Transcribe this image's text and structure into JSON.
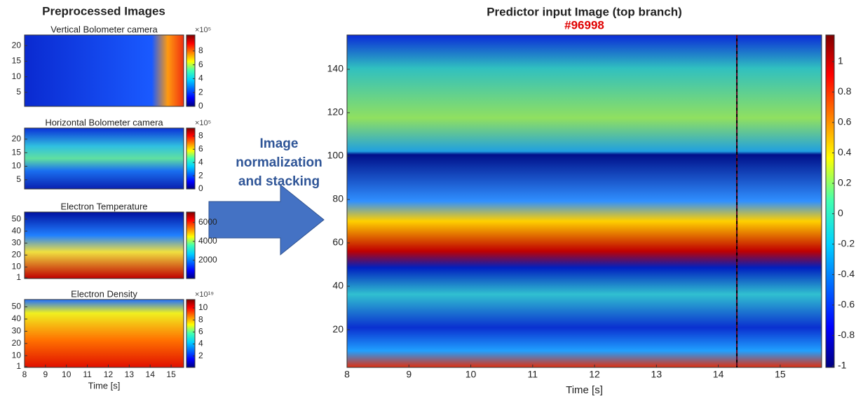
{
  "heading": "Preprocessed Images",
  "arrow_label": [
    "Image",
    "normalization",
    "and stacking"
  ],
  "chart_data": [
    {
      "type": "heatmap",
      "title": "Vertical Bolometer camera",
      "xlim": [
        8,
        15.6
      ],
      "ylim": [
        0.5,
        23.4
      ],
      "yticks": [
        5,
        10,
        15,
        20
      ],
      "clim": [
        0,
        10.3
      ],
      "cticks": [
        0,
        2,
        4,
        6,
        8
      ],
      "colorbar_scale": "×10⁵"
    },
    {
      "type": "heatmap",
      "title": "Horizontal Bolometer camera",
      "xlim": [
        8,
        15.6
      ],
      "ylim": [
        1.6,
        24.1
      ],
      "yticks": [
        5,
        10,
        15,
        20
      ],
      "clim": [
        0,
        9.2
      ],
      "cticks": [
        0,
        2,
        4,
        6,
        8
      ],
      "colorbar_scale": "×10⁵"
    },
    {
      "type": "heatmap",
      "title": "Electron Temperature",
      "xlim": [
        8,
        15.6
      ],
      "ylim": [
        0.4,
        55.9
      ],
      "yticks": [
        1,
        10,
        20,
        30,
        40,
        50
      ],
      "clim": [
        74,
        7100
      ],
      "cticks": [
        2000,
        4000,
        6000
      ]
    },
    {
      "type": "heatmap",
      "title": "Electron Density",
      "xlim": [
        8,
        15.6
      ],
      "ylim": [
        0.4,
        56
      ],
      "yticks": [
        1,
        10,
        20,
        30,
        40,
        50
      ],
      "clim": [
        0.1,
        11.4
      ],
      "cticks": [
        2,
        4,
        6,
        8,
        10
      ],
      "colorbar_scale": "×10¹⁹",
      "xticks": [
        8,
        9,
        10,
        11,
        12,
        13,
        14,
        15
      ],
      "xlabel": "Time [s]"
    },
    {
      "type": "heatmap",
      "title": "Predictor input Image (top branch)",
      "subtitle": "#96998",
      "xlim": [
        8,
        15.67
      ],
      "ylim": [
        2.6,
        155.8
      ],
      "yticks": [
        20,
        40,
        60,
        80,
        100,
        120,
        140
      ],
      "clim": [
        -1.01,
        1.175
      ],
      "cticks": [
        -1,
        -0.8,
        -0.6,
        -0.4,
        -0.2,
        0,
        0.2,
        0.4,
        0.6,
        0.8,
        1
      ],
      "xticks": [
        8,
        9,
        10,
        11,
        12,
        13,
        14,
        15
      ],
      "xlabel": "Time [s]",
      "marker_x": 14.3
    }
  ]
}
